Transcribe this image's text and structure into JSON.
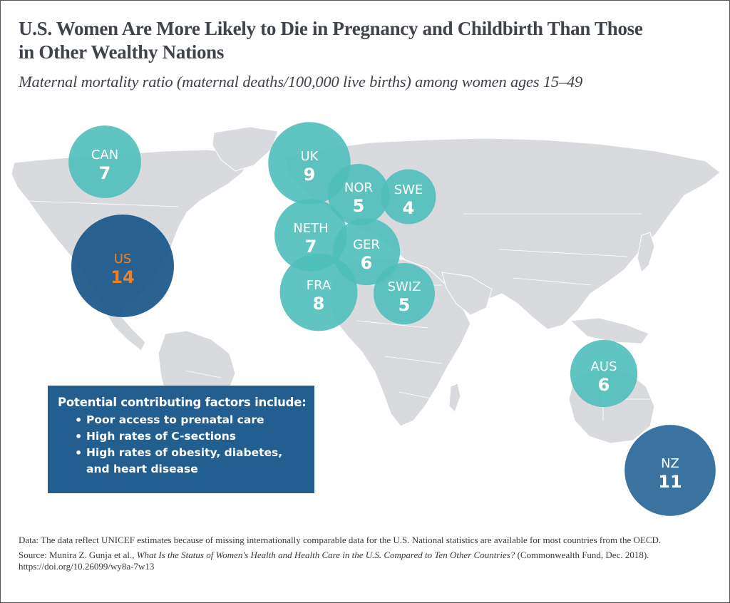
{
  "header": {
    "title": "U.S. Women Are More Likely to Die in Pregnancy and Childbirth Than Those in Other Wealthy Nations",
    "subtitle": "Maternal mortality ratio (maternal deaths/100,000 live births) among women ages 15–49"
  },
  "chart_data": {
    "type": "bubble-map",
    "title": "U.S. Women Are More Likely to Die in Pregnancy and Childbirth Than Those in Other Wealthy Nations",
    "subtitle": "Maternal mortality ratio (maternal deaths/100,000 live births) among women ages 15–49",
    "unit": "maternal deaths per 100,000 live births",
    "points": [
      {
        "label": "CAN",
        "value": 7,
        "category": "other"
      },
      {
        "label": "US",
        "value": 14,
        "category": "highlight"
      },
      {
        "label": "UK",
        "value": 9,
        "category": "other"
      },
      {
        "label": "NOR",
        "value": 5,
        "category": "other"
      },
      {
        "label": "SWE",
        "value": 4,
        "category": "other"
      },
      {
        "label": "NETH",
        "value": 7,
        "category": "other"
      },
      {
        "label": "GER",
        "value": 6,
        "category": "other"
      },
      {
        "label": "FRA",
        "value": 8,
        "category": "other"
      },
      {
        "label": "SWIZ",
        "value": 5,
        "category": "other"
      },
      {
        "label": "AUS",
        "value": 6,
        "category": "other"
      },
      {
        "label": "NZ",
        "value": 11,
        "category": "high"
      }
    ],
    "colors": {
      "other": "#4fbfbb",
      "highlight": "#1f5a8b",
      "high": "#2f6b9b",
      "highlight_text": "#e8822f",
      "land": "#d8d9dc"
    }
  },
  "factors": {
    "heading": "Potential contributing factors include:",
    "items": [
      "Poor access to prenatal care",
      "High rates of C-sections",
      "High rates of obesity, diabetes,",
      "and heart disease"
    ]
  },
  "notes": {
    "data_note": "Data: The data reflect UNICEF estimates because of missing internationally comparable data for the U.S. National statistics are available for most countries from the OECD.",
    "source_prefix": "Source: Munira Z. Gunja et al., ",
    "source_title": "What Is the Status of Women's Health and Health Care in the U.S. Compared to Ten Other Countries?",
    "source_suffix": " (Commonwealth Fund, Dec. 2018). https://doi.org/10.26099/wy8a-7w13"
  }
}
